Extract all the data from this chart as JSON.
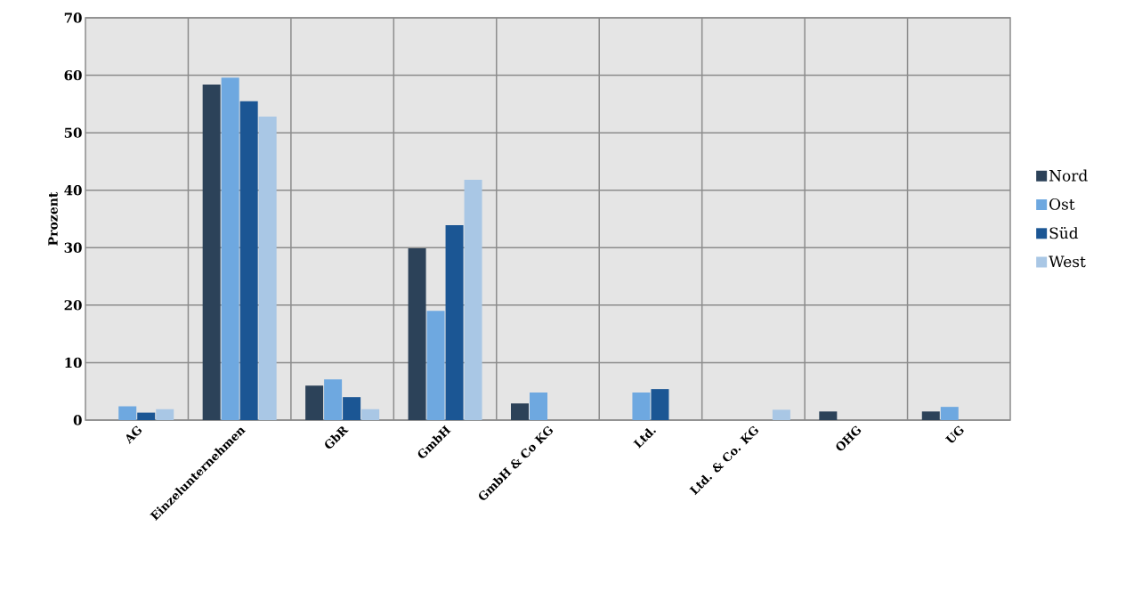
{
  "chart_data": {
    "type": "bar",
    "ylabel": "Prozent",
    "categories": [
      "AG",
      "Einzelunternehmen",
      "GbR",
      "GmbH",
      "GmbH & Co KG",
      "Ltd.",
      "Ltd. & Co. KG",
      "OHG",
      "UG"
    ],
    "series": [
      {
        "name": "Nord",
        "color": "#2c4259",
        "values": [
          0,
          58.4,
          6.0,
          29.9,
          2.9,
          0,
          0,
          1.5,
          1.5
        ]
      },
      {
        "name": "Ost",
        "color": "#6ea8e0",
        "values": [
          2.4,
          59.6,
          7.1,
          19.0,
          4.8,
          4.8,
          0,
          0,
          2.3
        ]
      },
      {
        "name": "Süd",
        "color": "#1b5694",
        "values": [
          1.3,
          55.5,
          4.0,
          33.9,
          0,
          5.4,
          0,
          0,
          0
        ]
      },
      {
        "name": "West",
        "color": "#a9c7e5",
        "values": [
          1.9,
          52.8,
          1.9,
          41.8,
          0,
          0,
          1.8,
          0,
          0
        ]
      }
    ],
    "ylim": [
      0,
      70
    ],
    "yticks": [
      0,
      10,
      20,
      30,
      40,
      50,
      60,
      70
    ],
    "grid": true,
    "legend": "right"
  }
}
